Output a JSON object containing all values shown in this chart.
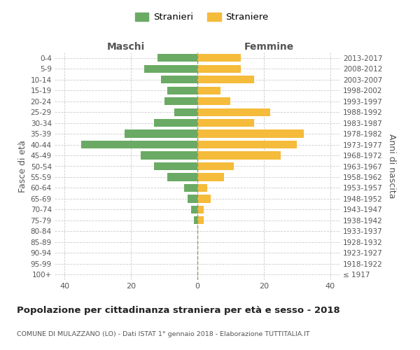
{
  "age_groups": [
    "100+",
    "95-99",
    "90-94",
    "85-89",
    "80-84",
    "75-79",
    "70-74",
    "65-69",
    "60-64",
    "55-59",
    "50-54",
    "45-49",
    "40-44",
    "35-39",
    "30-34",
    "25-29",
    "20-24",
    "15-19",
    "10-14",
    "5-9",
    "0-4"
  ],
  "birth_years": [
    "≤ 1917",
    "1918-1922",
    "1923-1927",
    "1928-1932",
    "1933-1937",
    "1938-1942",
    "1943-1947",
    "1948-1952",
    "1953-1957",
    "1958-1962",
    "1963-1967",
    "1968-1972",
    "1973-1977",
    "1978-1982",
    "1983-1987",
    "1988-1992",
    "1993-1997",
    "1998-2002",
    "2003-2007",
    "2008-2012",
    "2013-2017"
  ],
  "maschi": [
    0,
    0,
    0,
    0,
    0,
    1,
    2,
    3,
    4,
    9,
    13,
    17,
    35,
    22,
    13,
    7,
    10,
    9,
    11,
    16,
    12
  ],
  "femmine": [
    0,
    0,
    0,
    0,
    0,
    2,
    2,
    4,
    3,
    8,
    11,
    25,
    30,
    32,
    17,
    22,
    10,
    7,
    17,
    13,
    13
  ],
  "maschi_color": "#6aaa64",
  "femmine_color": "#f5bb3a",
  "grid_color": "#cccccc",
  "center_line_color": "#999977",
  "title": "Popolazione per cittadinanza straniera per età e sesso - 2018",
  "subtitle": "COMUNE DI MULAZZANO (LO) - Dati ISTAT 1° gennaio 2018 - Elaborazione TUTTITALIA.IT",
  "ylabel_left": "Fasce di età",
  "ylabel_right": "Anni di nascita",
  "header_left": "Maschi",
  "header_right": "Femmine",
  "legend_maschi": "Stranieri",
  "legend_femmine": "Straniere",
  "xlim": 43,
  "background_color": "#ffffff",
  "text_color": "#555555"
}
